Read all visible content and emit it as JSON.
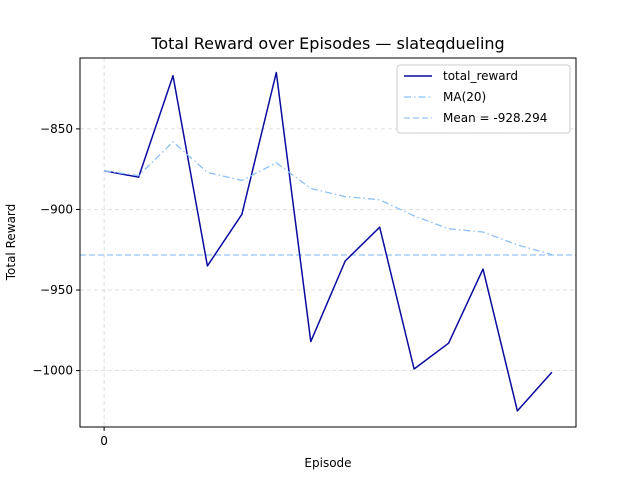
{
  "chart_data": {
    "type": "line",
    "title": "Total Reward over Episodes — slateqdueling",
    "xlabel": "Episode",
    "ylabel": "Total Reward",
    "xlim": [
      -0.7,
      13.7
    ],
    "ylim": [
      -1035,
      -806
    ],
    "x_ticks": [
      0
    ],
    "y_ticks": [
      -1000,
      -950,
      -900,
      -850
    ],
    "grid": true,
    "legend_position": "top-right",
    "x": [
      0,
      1,
      2,
      3,
      4,
      5,
      6,
      7,
      8,
      9,
      10,
      11,
      12,
      13
    ],
    "series": [
      {
        "name": "total_reward",
        "style": "solid",
        "color": "#0a0aa0",
        "values": [
          -876,
          -880,
          -817,
          -935,
          -903,
          -815,
          -982,
          -932,
          -911,
          -999,
          -983,
          -937,
          -1025,
          -1001
        ]
      },
      {
        "name": "MA(20)",
        "style": "dashdot",
        "color": "#8ec1f5",
        "values": [
          -876,
          -879,
          -858,
          -877,
          -882,
          -871,
          -887,
          -892,
          -894,
          -904,
          -912,
          -914,
          -922,
          -928
        ]
      }
    ],
    "hlines": [
      {
        "name": "Mean = -928.294",
        "value": -928.294,
        "style": "dashed",
        "color": "#a8cdf6"
      }
    ]
  }
}
